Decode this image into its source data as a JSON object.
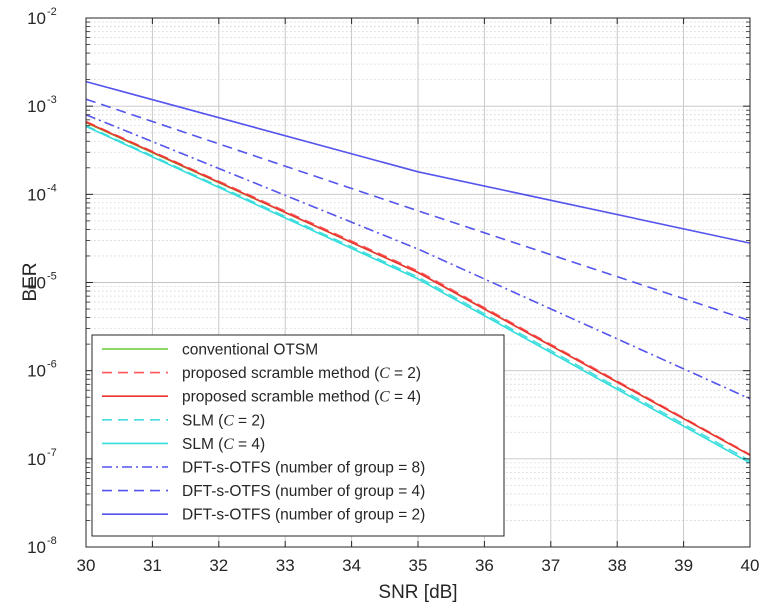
{
  "chart_data": {
    "type": "line",
    "title": "",
    "xlabel": "SNR [dB]",
    "ylabel": "BER",
    "xlim": [
      30,
      40
    ],
    "ylim": [
      1e-08,
      0.01
    ],
    "yscale": "log",
    "grid": true,
    "legend_position": "bottom-left",
    "x_ticks": [
      "30",
      "31",
      "32",
      "33",
      "34",
      "35",
      "36",
      "37",
      "38",
      "39",
      "40"
    ],
    "y_ticks": [
      {
        "base": "10",
        "exp": "-8"
      },
      {
        "base": "10",
        "exp": "-7"
      },
      {
        "base": "10",
        "exp": "-6"
      },
      {
        "base": "10",
        "exp": "-5"
      },
      {
        "base": "10",
        "exp": "-4"
      },
      {
        "base": "10",
        "exp": "-3"
      },
      {
        "base": "10",
        "exp": "-2"
      }
    ],
    "x": [
      30,
      35,
      40
    ],
    "series": [
      {
        "name": "conventional OTSM",
        "label_main": "conventional OTSM",
        "label_var": "",
        "label_tail": "",
        "color": "#66cc33",
        "dash": "solid",
        "values": [
          0.00065,
          1.3e-05,
          1.1e-07
        ]
      },
      {
        "name": "proposed scramble method (C = 2)",
        "label_main": "proposed scramble method (",
        "label_var": "C",
        "label_tail": " = 2)",
        "color": "#ff5555",
        "dash": "dashed",
        "values": [
          0.00067,
          1.35e-05,
          1.12e-07
        ]
      },
      {
        "name": "proposed scramble method (C = 4)",
        "label_main": "proposed scramble method (",
        "label_var": "C",
        "label_tail": " = 4)",
        "color": "#ee3333",
        "dash": "solid",
        "values": [
          0.00066,
          1.3e-05,
          1.1e-07
        ]
      },
      {
        "name": "SLM (C = 2)",
        "label_main": "SLM (",
        "label_var": "C",
        "label_tail": " = 2)",
        "color": "#44dddd",
        "dash": "dashed",
        "values": [
          0.0006,
          1.15e-05,
          9.5e-08
        ]
      },
      {
        "name": "SLM (C = 4)",
        "label_main": "SLM (",
        "label_var": "C",
        "label_tail": " = 4)",
        "color": "#33dddd",
        "dash": "solid",
        "values": [
          0.00059,
          1.1e-05,
          9e-08
        ]
      },
      {
        "name": "DFT-s-OTFS (number of group = 8)",
        "label_main": "DFT-s-OTFS (number of group = 8)",
        "label_var": "",
        "label_tail": "",
        "color": "#5555ee",
        "dash": "dashdot",
        "values": [
          0.0008,
          2.4e-05,
          4.8e-07
        ]
      },
      {
        "name": "DFT-s-OTFS (number of group = 4)",
        "label_main": "DFT-s-OTFS (number of group = 4)",
        "label_var": "",
        "label_tail": "",
        "color": "#5555ee",
        "dash": "dashed",
        "values": [
          0.0012,
          6.5e-05,
          3.7e-06
        ]
      },
      {
        "name": "DFT-s-OTFS (number of group = 2)",
        "label_main": "DFT-s-OTFS (number of group = 2)",
        "label_var": "",
        "label_tail": "",
        "color": "#5555ee",
        "dash": "solid",
        "values": [
          0.0019,
          0.00018,
          2.8e-05
        ]
      }
    ]
  }
}
